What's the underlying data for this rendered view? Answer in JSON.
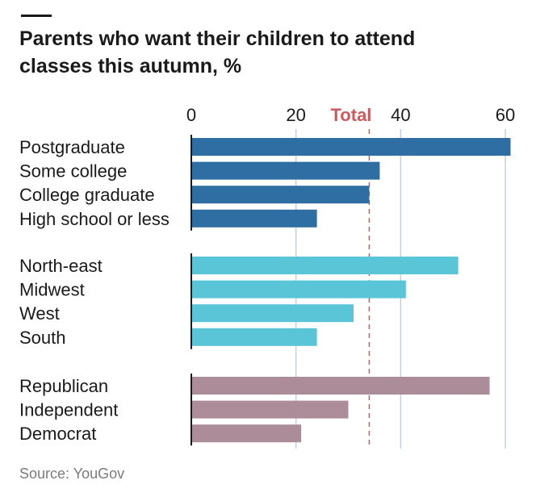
{
  "chart_data": {
    "type": "bar",
    "orientation": "horizontal",
    "title": "Parents who want their children to attend classes this autumn, %",
    "title_lines": [
      "Parents who want their children to attend",
      "classes this autumn, %"
    ],
    "source": "Source: YouGov",
    "xlim": [
      0,
      60
    ],
    "xticks": [
      0,
      20,
      40,
      60
    ],
    "reference_line": {
      "label": "Total",
      "value": 34,
      "color": "#d0585c"
    },
    "grid": true,
    "groups": [
      {
        "color": "#2e6ea3",
        "categories": [
          "Postgraduate",
          "Some college",
          "College graduate",
          "High school or less"
        ],
        "values": [
          61,
          36,
          34,
          24
        ]
      },
      {
        "color": "#5bc5d8",
        "categories": [
          "North-east",
          "Midwest",
          "West",
          "South"
        ],
        "values": [
          51,
          41,
          31,
          24
        ]
      },
      {
        "color": "#ab8c98",
        "categories": [
          "Republican",
          "Independent",
          "Democrat"
        ],
        "values": [
          57,
          30,
          21
        ]
      }
    ]
  }
}
